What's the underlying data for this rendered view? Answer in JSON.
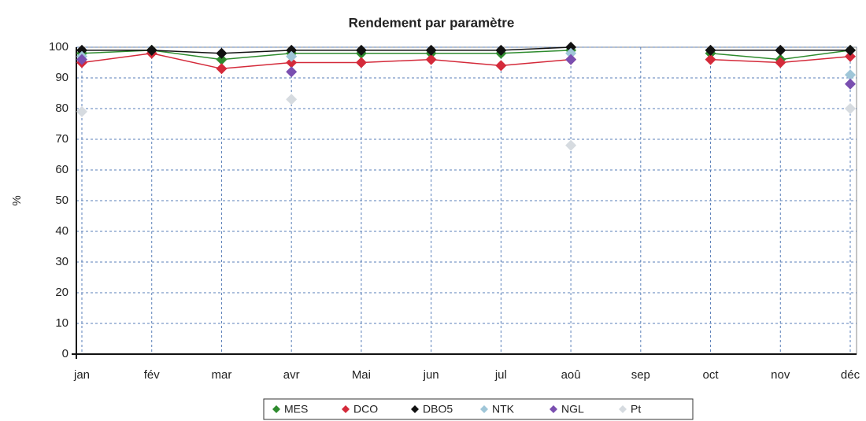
{
  "chart_data": {
    "type": "line",
    "title": "Rendement par paramètre",
    "ylabel": "%",
    "categories": [
      "jan",
      "fév",
      "mar",
      "avr",
      "Mai",
      "jun",
      "jul",
      "aoû",
      "sep",
      "oct",
      "nov",
      "déc"
    ],
    "series": [
      {
        "name": "MES",
        "color": "#2e8b2e",
        "values": [
          98,
          99,
          96,
          98,
          98,
          98,
          98,
          99,
          null,
          98,
          96,
          99
        ]
      },
      {
        "name": "DCO",
        "color": "#d42a3a",
        "values": [
          95,
          98,
          93,
          95,
          95,
          96,
          94,
          96,
          null,
          96,
          95,
          97
        ]
      },
      {
        "name": "DBO5",
        "color": "#111111",
        "values": [
          99,
          99,
          98,
          99,
          99,
          99,
          99,
          100,
          null,
          99,
          99,
          99
        ]
      },
      {
        "name": "NTK",
        "color": "#9fc6d8",
        "values": [
          97,
          null,
          null,
          97,
          null,
          null,
          null,
          98,
          null,
          null,
          null,
          91
        ]
      },
      {
        "name": "NGL",
        "color": "#7a4fb0",
        "values": [
          96,
          null,
          null,
          92,
          null,
          null,
          null,
          96,
          null,
          null,
          null,
          88
        ]
      },
      {
        "name": "Pt",
        "color": "#d6dbe0",
        "values": [
          79,
          null,
          null,
          83,
          null,
          null,
          null,
          68,
          null,
          null,
          null,
          80
        ]
      }
    ],
    "ylim": [
      0,
      100
    ],
    "yticks": [
      0,
      10,
      20,
      30,
      40,
      50,
      60,
      70,
      80,
      90,
      100
    ],
    "grid": true
  }
}
